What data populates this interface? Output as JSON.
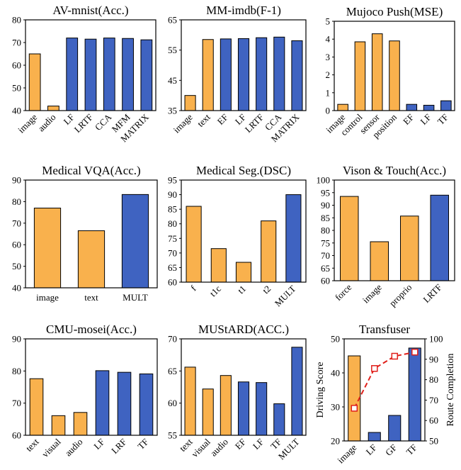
{
  "colors": {
    "unimodal": "#F9B14D",
    "multimodal": "#3F63C1",
    "line": "#E0201B"
  },
  "chart_data": [
    {
      "type": "bar",
      "title": "AV-mnist(Acc.)",
      "categories": [
        "image",
        "audio",
        "LF",
        "LRTF",
        "CCA",
        "MFM",
        "MATRIX"
      ],
      "values": [
        65,
        42,
        72,
        71.5,
        72,
        71.8,
        71.2
      ],
      "groups": [
        "uni",
        "uni",
        "multi",
        "multi",
        "multi",
        "multi",
        "multi"
      ],
      "ylim": [
        40,
        80
      ],
      "yticks": [
        40,
        50,
        60,
        70,
        80
      ]
    },
    {
      "type": "bar",
      "title": "MM-imdb(F-1)",
      "categories": [
        "image",
        "text",
        "EF",
        "LF",
        "LRTF",
        "CCA",
        "MATRIX"
      ],
      "values": [
        40,
        58.5,
        58.7,
        58.8,
        59.1,
        59.3,
        58.1
      ],
      "groups": [
        "uni",
        "uni",
        "multi",
        "multi",
        "multi",
        "multi",
        "multi"
      ],
      "ylim": [
        35,
        65
      ],
      "yticks": [
        35,
        45,
        55,
        65
      ]
    },
    {
      "type": "bar",
      "title": "Mujoco Push(MSE)",
      "categories": [
        "image",
        "control",
        "sensor",
        "position",
        "EF",
        "LF",
        "TF"
      ],
      "values": [
        0.35,
        3.85,
        4.3,
        3.9,
        0.35,
        0.3,
        0.55
      ],
      "groups": [
        "uni",
        "uni",
        "uni",
        "uni",
        "multi",
        "multi",
        "multi"
      ],
      "ylim": [
        0,
        5
      ],
      "yticks": [
        0,
        1,
        2,
        3,
        4,
        5
      ]
    },
    {
      "type": "bar",
      "title": "Medical VQA(Acc.)",
      "categories": [
        "image",
        "text",
        "MULT"
      ],
      "values": [
        77,
        66.5,
        83.3
      ],
      "groups": [
        "uni",
        "uni",
        "multi"
      ],
      "ylim": [
        40,
        90
      ],
      "yticks": [
        40,
        50,
        60,
        70,
        80,
        90
      ]
    },
    {
      "type": "bar",
      "title": "Medical Seg.(DSC)",
      "categories": [
        "f",
        "t1c",
        "t1",
        "t2",
        "MULT"
      ],
      "values": [
        86,
        71.5,
        66.8,
        81,
        90
      ],
      "groups": [
        "uni",
        "uni",
        "uni",
        "uni",
        "multi"
      ],
      "ylim": [
        60,
        95
      ],
      "yticks": [
        60,
        65,
        70,
        75,
        80,
        85,
        90,
        95
      ]
    },
    {
      "type": "bar",
      "title": "Vison & Touch(Acc.)",
      "categories": [
        "force",
        "image",
        "proprio",
        "LRTF"
      ],
      "values": [
        93.5,
        75.5,
        85.7,
        94
      ],
      "groups": [
        "uni",
        "uni",
        "uni",
        "multi"
      ],
      "ylim": [
        60,
        100
      ],
      "yticks": [
        60,
        65,
        70,
        75,
        80,
        85,
        90,
        95,
        100
      ]
    },
    {
      "type": "bar",
      "title": "CMU-mosei(Acc.)",
      "categories": [
        "text",
        "visual",
        "audio",
        "LF",
        "LRF",
        "TF"
      ],
      "values": [
        77.6,
        66.1,
        67.1,
        80.1,
        79.6,
        79.1
      ],
      "groups": [
        "uni",
        "uni",
        "uni",
        "multi",
        "multi",
        "multi"
      ],
      "ylim": [
        60,
        90
      ],
      "yticks": [
        60,
        70,
        80,
        90
      ]
    },
    {
      "type": "bar",
      "title": "MUStARD(ACC.)",
      "categories": [
        "text",
        "visual",
        "audio",
        "EF",
        "LF",
        "TF",
        "MULT"
      ],
      "values": [
        65.6,
        62.2,
        64.3,
        63.3,
        63.2,
        59.9,
        68.7
      ],
      "groups": [
        "uni",
        "uni",
        "uni",
        "multi",
        "multi",
        "multi",
        "multi"
      ],
      "ylim": [
        55,
        70
      ],
      "yticks": [
        55,
        60,
        65,
        70
      ]
    },
    {
      "type": "bar+line",
      "title": "Transfuser",
      "categories": [
        "image",
        "LF",
        "GF",
        "TF"
      ],
      "values": [
        45,
        22.5,
        27.5,
        47.3
      ],
      "groups": [
        "uni",
        "multi",
        "multi",
        "multi"
      ],
      "ylabel": "Driving Score",
      "ylim": [
        20,
        50
      ],
      "yticks": [
        20,
        30,
        40,
        50
      ],
      "y2label": "Route Completion",
      "y2lim": [
        50,
        100
      ],
      "y2ticks": [
        50,
        60,
        70,
        80,
        90,
        100
      ],
      "line_values": [
        66,
        85.5,
        91.5,
        93.5
      ]
    }
  ]
}
